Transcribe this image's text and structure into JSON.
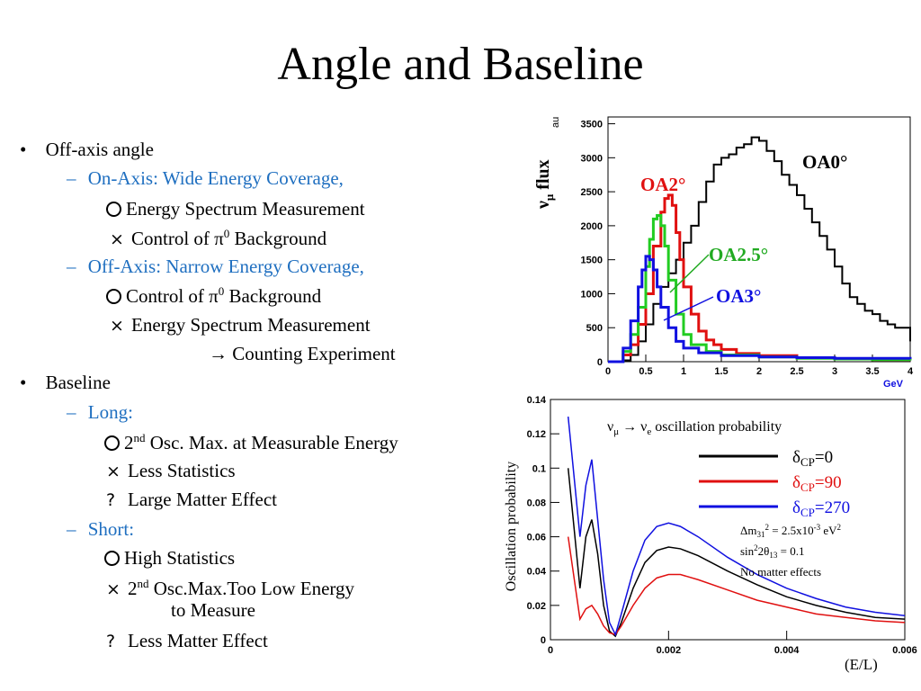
{
  "slide": {
    "title": "Angle and Baseline"
  },
  "left": {
    "bullet1": "Off-axis angle",
    "onaxis": "On-Axis: Wide Energy Coverage,",
    "onaxis_good": "Energy Spectrum Measurement",
    "onaxis_bad_pre": "Control of ",
    "pi": "π",
    "pi_sup": "0",
    "onaxis_bad_post": " Background",
    "offaxis": "Off-Axis: Narrow Energy Coverage,",
    "offaxis_good_pre": "Control of ",
    "offaxis_good_post": " Background",
    "offaxis_bad": "Energy Spectrum Measurement",
    "arrow": "→ Counting Experiment",
    "bullet2": "Baseline",
    "long": "Long:",
    "long_good_pre": "2",
    "nd": "nd",
    "long_good_post": " Osc. Max. at Measurable Energy",
    "long_bad": "Less Statistics",
    "long_q": "Large Matter Effect",
    "short": "Short:",
    "short_good": "High Statistics",
    "short_bad_pre": "2",
    "short_bad_post": " Osc.Max.Too Low Energy",
    "short_bad_cont": "to Measure",
    "short_q": "Less Matter Effect",
    "dash": "–",
    "bullet": "•",
    "cross": "×",
    "question": "?"
  },
  "chart_data": [
    {
      "type": "line",
      "xlabel": "GeV",
      "ylabel": "ν_μ flux au",
      "xlim": [
        0,
        4
      ],
      "ylim": [
        0,
        3600
      ],
      "x_ticks": [
        "0",
        "0.5",
        "1",
        "1.5",
        "2",
        "2.5",
        "3",
        "3.5",
        "4"
      ],
      "y_ticks": [
        "0",
        "500",
        "1000",
        "1500",
        "2000",
        "2500",
        "3000",
        "3500"
      ],
      "ylabel_main": "ν",
      "ylabel_sub": "μ",
      "ylabel_rest": " flux",
      "ylabel_unit": "au",
      "series": [
        {
          "name": "OA0°",
          "color": "#000000",
          "x": [
            0,
            0.2,
            0.3,
            0.4,
            0.5,
            0.6,
            0.7,
            0.8,
            0.9,
            1.0,
            1.1,
            1.2,
            1.3,
            1.4,
            1.5,
            1.6,
            1.7,
            1.8,
            1.9,
            2.0,
            2.1,
            2.2,
            2.3,
            2.4,
            2.5,
            2.6,
            2.7,
            2.8,
            2.9,
            3.0,
            3.1,
            3.2,
            3.3,
            3.4,
            3.5,
            3.6,
            3.7,
            3.8,
            3.9,
            4.0
          ],
          "y": [
            0,
            20,
            100,
            300,
            550,
            850,
            1100,
            1300,
            1500,
            1750,
            2000,
            2350,
            2650,
            2900,
            3000,
            3050,
            3150,
            3200,
            3300,
            3250,
            3100,
            2950,
            2750,
            2600,
            2450,
            2250,
            2050,
            1850,
            1650,
            1400,
            1150,
            950,
            850,
            750,
            700,
            600,
            550,
            500,
            500,
            300
          ]
        },
        {
          "name": "OA2°",
          "color": "#e01010",
          "x": [
            0,
            0.2,
            0.3,
            0.4,
            0.5,
            0.6,
            0.7,
            0.75,
            0.8,
            0.85,
            0.9,
            0.95,
            1.0,
            1.1,
            1.2,
            1.3,
            1.4,
            1.5,
            1.7,
            2.0,
            2.5,
            3.0,
            3.5,
            4.0
          ],
          "y": [
            0,
            100,
            250,
            550,
            1000,
            1700,
            2200,
            2400,
            2450,
            2300,
            1900,
            1500,
            1100,
            700,
            450,
            320,
            250,
            180,
            120,
            90,
            60,
            40,
            30,
            20
          ]
        },
        {
          "name": "OA2.5°",
          "color": "#22cc22",
          "x": [
            0,
            0.2,
            0.3,
            0.4,
            0.5,
            0.55,
            0.6,
            0.65,
            0.7,
            0.75,
            0.8,
            0.9,
            1.0,
            1.1,
            1.3,
            1.5,
            2.0,
            2.5,
            3.0,
            3.5,
            4.0
          ],
          "y": [
            0,
            150,
            400,
            800,
            1400,
            1800,
            2100,
            2150,
            2000,
            1700,
            1200,
            700,
            400,
            250,
            150,
            100,
            70,
            50,
            40,
            30,
            20
          ]
        },
        {
          "name": "OA3°",
          "color": "#1010e0",
          "x": [
            0,
            0.2,
            0.3,
            0.4,
            0.45,
            0.5,
            0.55,
            0.6,
            0.65,
            0.7,
            0.8,
            0.9,
            1.0,
            1.2,
            1.5,
            2.0,
            2.5,
            3.0,
            3.5,
            4.0
          ],
          "y": [
            0,
            200,
            600,
            1100,
            1350,
            1550,
            1500,
            1350,
            1100,
            800,
            500,
            300,
            200,
            130,
            90,
            70,
            60,
            50,
            50,
            40
          ]
        }
      ],
      "annotations": [
        "OA0°",
        "OA2°",
        "OA2.5°",
        "OA3°"
      ]
    },
    {
      "type": "line",
      "xlabel": "(E/L)",
      "ylabel": "Oscillation probability",
      "xlim": [
        0,
        0.006
      ],
      "ylim": [
        0,
        0.14
      ],
      "x_ticks": [
        "0",
        "0.002",
        "0.004",
        "0.006"
      ],
      "y_ticks": [
        "0",
        "0.02",
        "0.04",
        "0.06",
        "0.08",
        "0.1",
        "0.12",
        "0.14"
      ],
      "legend_title_pre": "ν",
      "legend_title_sub1": "μ",
      "legend_title_arrow": " → ν",
      "legend_title_sub2": "e",
      "legend_title_post": " oscillation probability",
      "legend_delta": "δ",
      "legend_cp": "CP",
      "params_line1_pre": "Δm",
      "params_line1_sub": "31",
      "params_line1_sup": "2",
      "params_line1_mid": " = 2.5x10",
      "params_line1_sup2": "-3",
      "params_line1_post": " eV",
      "params_line2_pre": "sin",
      "params_line2_sup": "2",
      "params_line2_mid": "2θ",
      "params_line2_sub": "13",
      "params_line2_post": " = 0.1",
      "params_line3": "No matter effects",
      "series": [
        {
          "name": "=0",
          "color": "#000000",
          "x": [
            0.0003,
            0.0005,
            0.0006,
            0.0007,
            0.0008,
            0.0009,
            0.001,
            0.0011,
            0.0012,
            0.0014,
            0.0016,
            0.0018,
            0.002,
            0.0022,
            0.0025,
            0.003,
            0.0035,
            0.004,
            0.0045,
            0.005,
            0.0055,
            0.006
          ],
          "y": [
            0.1,
            0.03,
            0.06,
            0.07,
            0.05,
            0.02,
            0.005,
            0.002,
            0.01,
            0.03,
            0.045,
            0.052,
            0.054,
            0.053,
            0.049,
            0.04,
            0.032,
            0.025,
            0.02,
            0.016,
            0.013,
            0.012
          ]
        },
        {
          "name": "=90",
          "color": "#e01010",
          "x": [
            0.0003,
            0.0005,
            0.0006,
            0.0007,
            0.0008,
            0.0009,
            0.001,
            0.0011,
            0.0012,
            0.0014,
            0.0016,
            0.0018,
            0.002,
            0.0022,
            0.0025,
            0.003,
            0.0035,
            0.004,
            0.0045,
            0.005,
            0.0055,
            0.006
          ],
          "y": [
            0.06,
            0.012,
            0.018,
            0.02,
            0.015,
            0.008,
            0.004,
            0.003,
            0.008,
            0.02,
            0.03,
            0.036,
            0.038,
            0.038,
            0.035,
            0.029,
            0.023,
            0.019,
            0.015,
            0.013,
            0.011,
            0.01
          ]
        },
        {
          "name": "=270",
          "color": "#1010e0",
          "x": [
            0.0003,
            0.0005,
            0.0006,
            0.0007,
            0.0008,
            0.0009,
            0.001,
            0.0011,
            0.0012,
            0.0014,
            0.0016,
            0.0018,
            0.002,
            0.0022,
            0.0025,
            0.003,
            0.0035,
            0.004,
            0.0045,
            0.005,
            0.0055,
            0.006
          ],
          "y": [
            0.13,
            0.06,
            0.09,
            0.105,
            0.07,
            0.035,
            0.01,
            0.003,
            0.015,
            0.04,
            0.058,
            0.066,
            0.068,
            0.066,
            0.06,
            0.048,
            0.038,
            0.03,
            0.024,
            0.019,
            0.016,
            0.014
          ]
        }
      ]
    }
  ]
}
